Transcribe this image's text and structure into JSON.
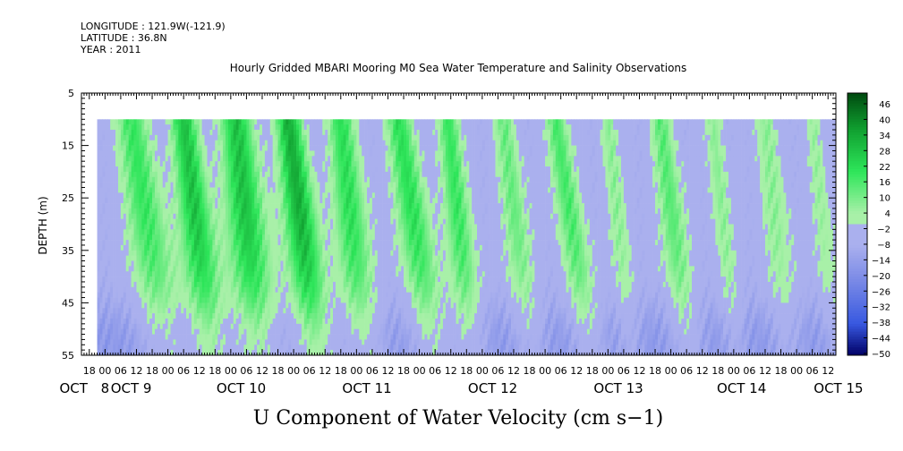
{
  "header": {
    "longitude": "LONGITUDE : 121.9W(-121.9)",
    "latitude": "LATITUDE : 36.8N",
    "year": "YEAR : 2011"
  },
  "chart_data": {
    "type": "heatmap",
    "title": "Hourly Gridded MBARI Mooring M0 Sea Water Temperature and Salinity Observations",
    "xlabel": "U Component of Water Velocity (cm s−1)",
    "ylabel": "DEPTH (m)",
    "y_range": [
      5,
      55
    ],
    "y_ticks": [
      5,
      15,
      25,
      35,
      45,
      55
    ],
    "data_depth_range": [
      10,
      55
    ],
    "x_range_hours": [
      -9,
      279
    ],
    "data_start_hour": -3,
    "hour_ticks": [
      {
        "h": -6,
        "label": "18"
      },
      {
        "h": 0,
        "label": "00"
      },
      {
        "h": 6,
        "label": "06"
      },
      {
        "h": 12,
        "label": "12"
      },
      {
        "h": 18,
        "label": "18"
      },
      {
        "h": 24,
        "label": "00"
      },
      {
        "h": 30,
        "label": "06"
      },
      {
        "h": 36,
        "label": "12"
      },
      {
        "h": 42,
        "label": "18"
      },
      {
        "h": 48,
        "label": "00"
      },
      {
        "h": 54,
        "label": "06"
      },
      {
        "h": 60,
        "label": "12"
      },
      {
        "h": 66,
        "label": "18"
      },
      {
        "h": 72,
        "label": "00"
      },
      {
        "h": 78,
        "label": "06"
      },
      {
        "h": 84,
        "label": "12"
      },
      {
        "h": 90,
        "label": "18"
      },
      {
        "h": 96,
        "label": "00"
      },
      {
        "h": 102,
        "label": "06"
      },
      {
        "h": 108,
        "label": "12"
      },
      {
        "h": 114,
        "label": "18"
      },
      {
        "h": 120,
        "label": "00"
      },
      {
        "h": 126,
        "label": "06"
      },
      {
        "h": 132,
        "label": "12"
      },
      {
        "h": 138,
        "label": "18"
      },
      {
        "h": 144,
        "label": "00"
      },
      {
        "h": 150,
        "label": "06"
      },
      {
        "h": 156,
        "label": "12"
      },
      {
        "h": 162,
        "label": "18"
      },
      {
        "h": 168,
        "label": "00"
      },
      {
        "h": 174,
        "label": "06"
      },
      {
        "h": 180,
        "label": "12"
      },
      {
        "h": 186,
        "label": "18"
      },
      {
        "h": 192,
        "label": "00"
      },
      {
        "h": 198,
        "label": "06"
      },
      {
        "h": 204,
        "label": "12"
      },
      {
        "h": 210,
        "label": "18"
      },
      {
        "h": 216,
        "label": "00"
      },
      {
        "h": 222,
        "label": "06"
      },
      {
        "h": 228,
        "label": "12"
      },
      {
        "h": 234,
        "label": "18"
      },
      {
        "h": 240,
        "label": "00"
      },
      {
        "h": 246,
        "label": "06"
      },
      {
        "h": 252,
        "label": "12"
      },
      {
        "h": 258,
        "label": "18"
      },
      {
        "h": 264,
        "label": "00"
      },
      {
        "h": 270,
        "label": "06"
      },
      {
        "h": 276,
        "label": "12"
      }
    ],
    "day_labels": [
      {
        "h": -12,
        "label": "OCT"
      },
      {
        "h": 0,
        "label": "8"
      },
      {
        "h": 10,
        "label": "OCT  9"
      },
      {
        "h": 52,
        "label": "OCT 10"
      },
      {
        "h": 100,
        "label": "OCT 11"
      },
      {
        "h": 148,
        "label": "OCT 12"
      },
      {
        "h": 196,
        "label": "OCT 13"
      },
      {
        "h": 243,
        "label": "OCT 14"
      },
      {
        "h": 280,
        "label": "OCT 15"
      }
    ],
    "colorbar": {
      "min": -50,
      "max": 50,
      "labels": [
        "46",
        "40",
        "34",
        "28",
        "22",
        "16",
        "10",
        "4",
        "−2",
        "−8",
        "−14",
        "−20",
        "−26",
        "−32",
        "−38",
        "−44",
        "−50"
      ]
    },
    "green_bands": [
      {
        "center": 10,
        "width": 6,
        "amplitude": 22,
        "tilt": 0.15
      },
      {
        "center": 30,
        "width": 5,
        "amplitude": 30,
        "tilt": 0.12
      },
      {
        "center": 50,
        "width": 6,
        "amplitude": 30,
        "tilt": 0.1
      },
      {
        "center": 70,
        "width": 5,
        "amplitude": 34,
        "tilt": 0.12
      },
      {
        "center": 90,
        "width": 5,
        "amplitude": 24,
        "tilt": 0.1
      },
      {
        "center": 112,
        "width": 5,
        "amplitude": 24,
        "tilt": 0.15
      },
      {
        "center": 131,
        "width": 4,
        "amplitude": 22,
        "tilt": 0.1
      },
      {
        "center": 152,
        "width": 4,
        "amplitude": 16,
        "tilt": 0.12
      },
      {
        "center": 172,
        "width": 4,
        "amplitude": 20,
        "tilt": 0.15
      },
      {
        "center": 192,
        "width": 3,
        "amplitude": 12,
        "tilt": 0.1
      },
      {
        "center": 212,
        "width": 4,
        "amplitude": 18,
        "tilt": 0.12
      },
      {
        "center": 232,
        "width": 3,
        "amplitude": 12,
        "tilt": 0.1
      },
      {
        "center": 252,
        "width": 4,
        "amplitude": 12,
        "tilt": 0.1
      },
      {
        "center": 270,
        "width": 3,
        "amplitude": 10,
        "tilt": 0.1
      }
    ],
    "palette": {
      "neg_light": "#aab0ee",
      "neg_mid": "#7888e6",
      "neg_deep": "#3858e0",
      "neg_darkest": "#000066",
      "pos_light": "#a8f0a8",
      "pos_mid": "#2ee65a",
      "pos_deep": "#10a030",
      "pos_darkest": "#004a10"
    }
  }
}
